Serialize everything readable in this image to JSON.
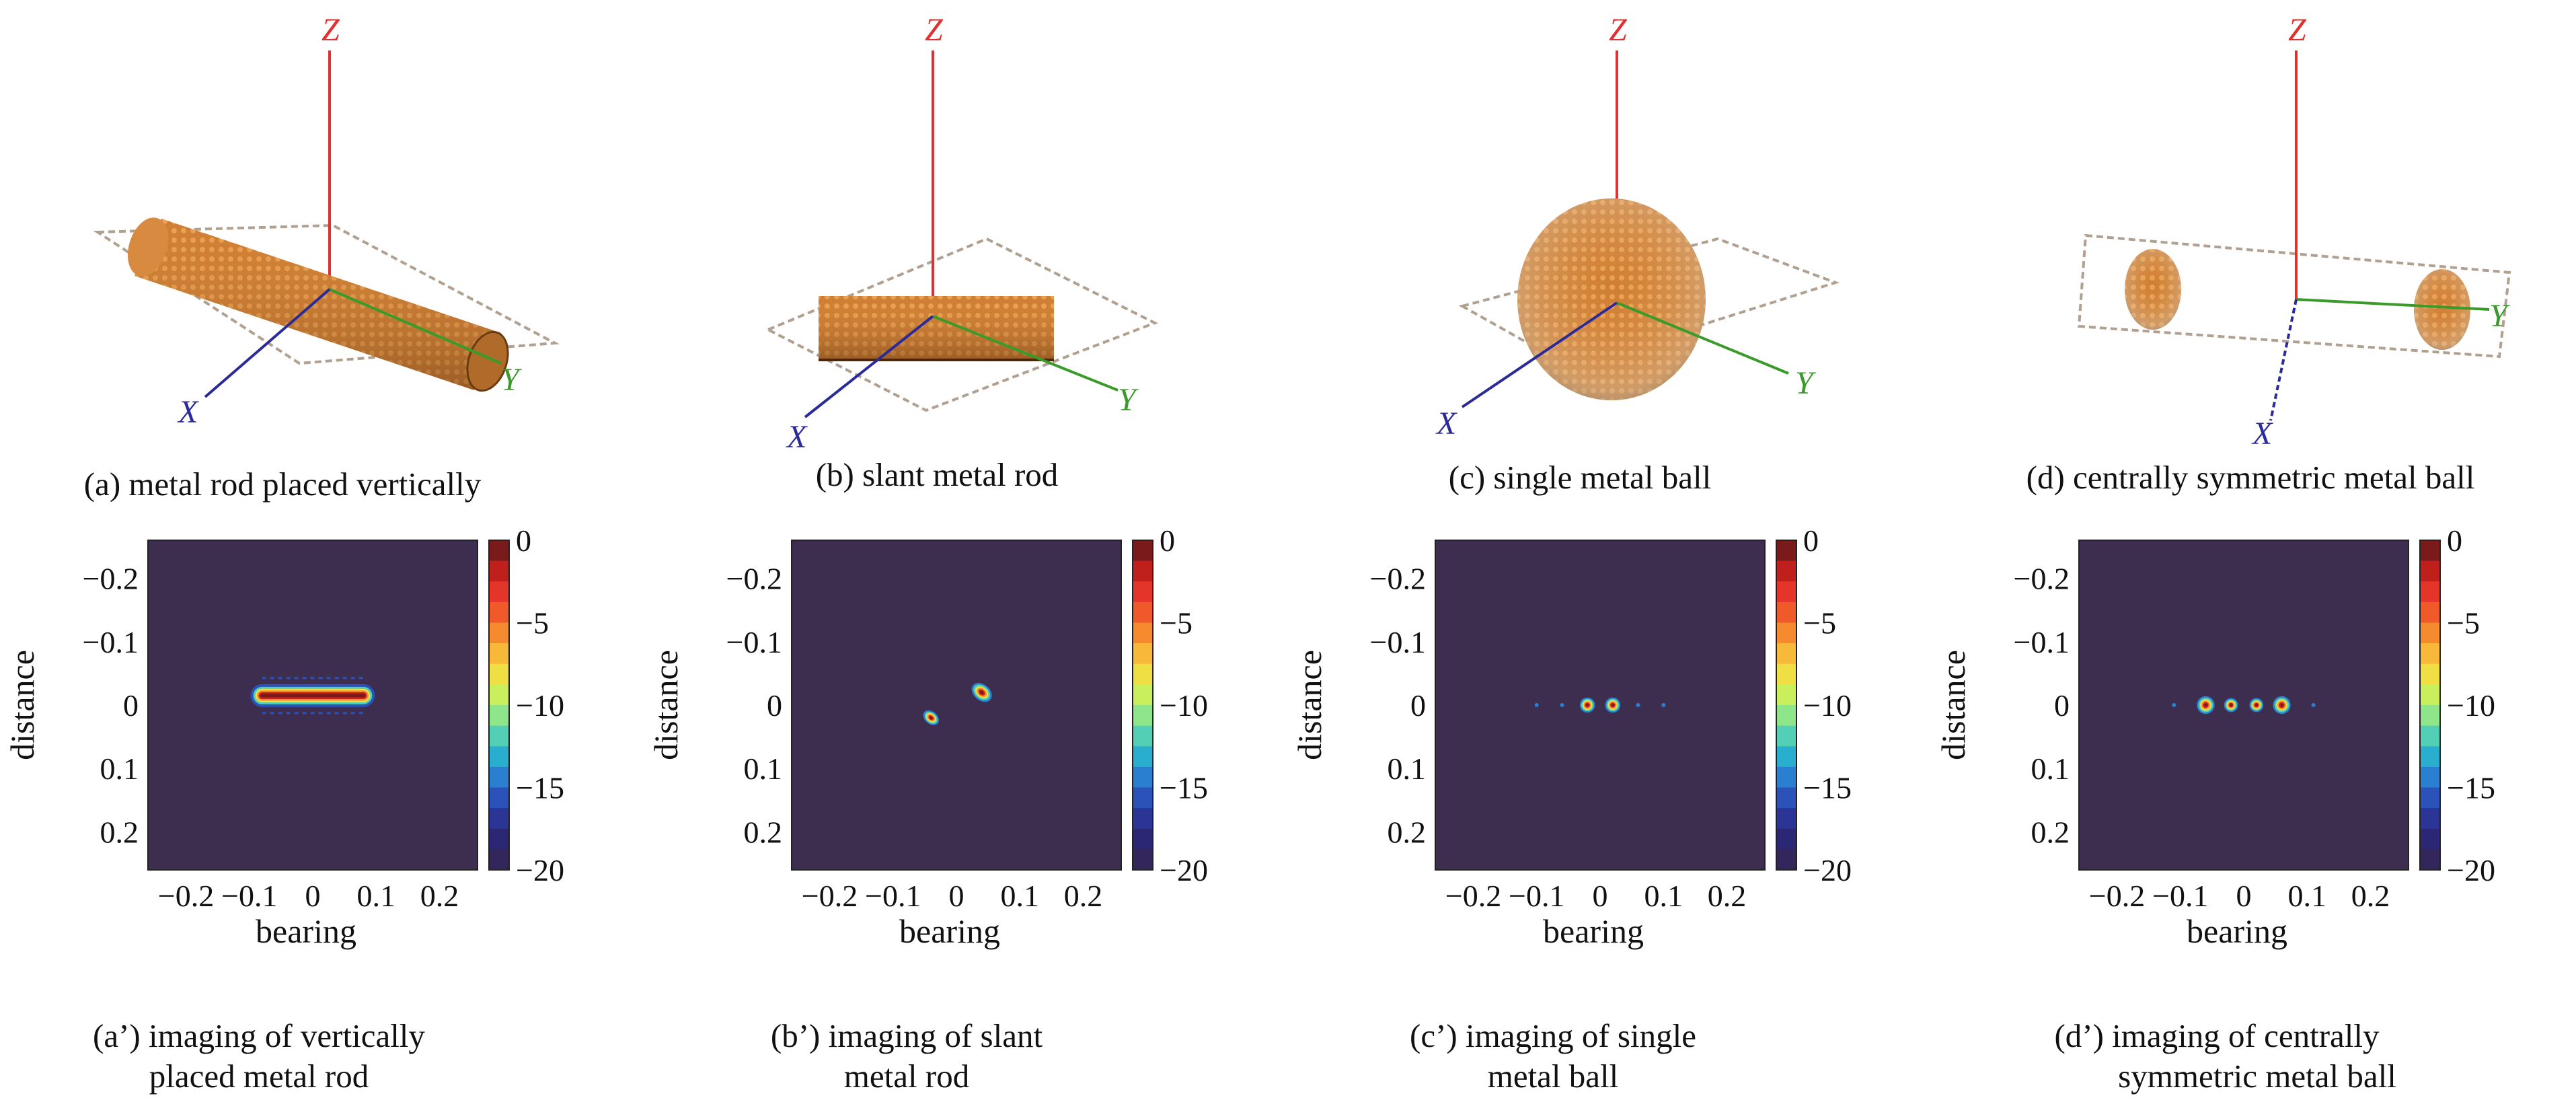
{
  "objects": [
    {
      "caption": "(a) metal rod placed vertically",
      "shape": "rod-vertical"
    },
    {
      "caption": "(b) slant metal rod",
      "shape": "rod-slant"
    },
    {
      "caption": "(c) single metal ball",
      "shape": "ball"
    },
    {
      "caption": "(d) centrally symmetric metal ball",
      "shape": "two-balls"
    }
  ],
  "axes3d": {
    "x": "X",
    "y": "Y",
    "z": "Z"
  },
  "images": [
    {
      "caption_line1": "(a’) imaging of vertically",
      "caption_line2": "placed metal rod"
    },
    {
      "caption_line1": "(b’) imaging of slant",
      "caption_line2": "metal rod"
    },
    {
      "caption_line1": "(c’) imaging of single",
      "caption_line2": "metal ball"
    },
    {
      "caption_line1": "(d’) imaging of centrally",
      "caption_line2": "symmetric metal ball"
    }
  ],
  "colors": {
    "background": "#3d2e4f",
    "object": "#d98a3a",
    "z_axis": "#e03030",
    "y_axis": "#3a9a2a",
    "x_axis": "#2a2a9a"
  },
  "chart_data": [
    {
      "type": "heatmap",
      "xlabel": "bearing",
      "ylabel": "distance",
      "xticks": [
        "−0.2",
        "−0.1",
        "0",
        "0.1",
        "0.2"
      ],
      "yticks": [
        "−0.2",
        "−0.1",
        "0",
        "0.1",
        "0.2"
      ],
      "colorbar_ticks": [
        "0",
        "−5",
        "−10",
        "−15",
        "−20"
      ],
      "clim": [
        -20,
        0
      ]
    },
    {
      "type": "heatmap",
      "xlabel": "bearing",
      "ylabel": "distance",
      "xticks": [
        "−0.2",
        "−0.1",
        "0",
        "0.1",
        "0.2"
      ],
      "yticks": [
        "−0.2",
        "−0.1",
        "0",
        "0.1",
        "0.2"
      ],
      "colorbar_ticks": [
        "0",
        "−5",
        "−10",
        "−15",
        "−20"
      ],
      "clim": [
        -20,
        0
      ]
    },
    {
      "type": "heatmap",
      "xlabel": "bearing",
      "ylabel": "distance",
      "xticks": [
        "−0.2",
        "−0.1",
        "0",
        "0.1",
        "0.2"
      ],
      "yticks": [
        "−0.2",
        "−0.1",
        "0",
        "0.1",
        "0.2"
      ],
      "colorbar_ticks": [
        "0",
        "−5",
        "−10",
        "−15",
        "−20"
      ],
      "clim": [
        -20,
        0
      ]
    },
    {
      "type": "heatmap",
      "xlabel": "bearing",
      "ylabel": "distance",
      "xticks": [
        "−0.2",
        "−0.1",
        "0",
        "0.1",
        "0.2"
      ],
      "yticks": [
        "−0.2",
        "−0.1",
        "0",
        "0.1",
        "0.2"
      ],
      "colorbar_ticks": [
        "0",
        "−5",
        "−10",
        "−15",
        "−20"
      ],
      "clim": [
        -20,
        0
      ]
    }
  ]
}
